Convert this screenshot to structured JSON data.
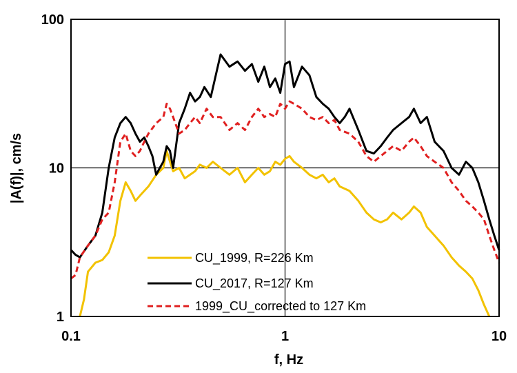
{
  "chart_data": {
    "type": "line",
    "title": "",
    "xlabel": "f, Hz",
    "ylabel": "|A(f)|, cm/s",
    "xscale": "log",
    "yscale": "log",
    "xlim": [
      0.1,
      10
    ],
    "ylim": [
      1,
      100
    ],
    "grid": "major lines at 1 Hz and 10 cm/s",
    "legend_position": "bottom-center",
    "x_ticks": [
      "0.1",
      "1",
      "10"
    ],
    "y_ticks": [
      "1",
      "10",
      "100"
    ],
    "series": [
      {
        "name": "CU_1999, R=226 Km",
        "color": "#f2c200",
        "style": "solid",
        "x": [
          0.11,
          0.115,
          0.12,
          0.13,
          0.14,
          0.15,
          0.16,
          0.17,
          0.18,
          0.19,
          0.2,
          0.21,
          0.22,
          0.23,
          0.25,
          0.27,
          0.28,
          0.29,
          0.3,
          0.32,
          0.34,
          0.36,
          0.38,
          0.4,
          0.43,
          0.46,
          0.5,
          0.55,
          0.6,
          0.65,
          0.7,
          0.75,
          0.8,
          0.85,
          0.9,
          0.95,
          1.0,
          1.05,
          1.1,
          1.2,
          1.3,
          1.4,
          1.5,
          1.6,
          1.7,
          1.8,
          2.0,
          2.2,
          2.4,
          2.6,
          2.8,
          3.0,
          3.2,
          3.5,
          3.8,
          4.0,
          4.3,
          4.6,
          5.0,
          5.5,
          6.0,
          6.5,
          7.0,
          7.5,
          8.0,
          8.5,
          9.0
        ],
        "y": [
          1.0,
          1.3,
          2.0,
          2.3,
          2.4,
          2.7,
          3.5,
          6.0,
          8.0,
          7.0,
          6.0,
          6.5,
          7.0,
          7.5,
          9.0,
          10.0,
          13.0,
          11.0,
          9.5,
          10.0,
          8.5,
          9.0,
          9.5,
          10.5,
          10.0,
          11.0,
          10.0,
          9.0,
          10.0,
          8.0,
          9.0,
          10.0,
          9.0,
          9.5,
          11.0,
          10.5,
          11.5,
          12.0,
          11.0,
          10.0,
          9.0,
          8.5,
          9.0,
          8.0,
          8.5,
          7.5,
          7.0,
          6.0,
          5.0,
          4.5,
          4.3,
          4.5,
          5.0,
          4.5,
          5.0,
          5.5,
          5.0,
          4.0,
          3.5,
          3.0,
          2.5,
          2.2,
          2.0,
          1.8,
          1.5,
          1.2,
          1.0
        ]
      },
      {
        "name": "CU_2017, R=127 Km",
        "color": "#000000",
        "style": "solid",
        "x": [
          0.1,
          0.105,
          0.11,
          0.12,
          0.13,
          0.14,
          0.15,
          0.16,
          0.17,
          0.18,
          0.19,
          0.2,
          0.21,
          0.22,
          0.23,
          0.24,
          0.25,
          0.26,
          0.27,
          0.28,
          0.29,
          0.3,
          0.32,
          0.34,
          0.36,
          0.38,
          0.4,
          0.42,
          0.45,
          0.48,
          0.5,
          0.55,
          0.6,
          0.65,
          0.7,
          0.75,
          0.8,
          0.85,
          0.9,
          0.95,
          1.0,
          1.05,
          1.1,
          1.2,
          1.3,
          1.4,
          1.5,
          1.6,
          1.7,
          1.8,
          1.9,
          2.0,
          2.2,
          2.4,
          2.6,
          2.8,
          3.0,
          3.2,
          3.5,
          3.8,
          4.0,
          4.3,
          4.6,
          5.0,
          5.5,
          6.0,
          6.5,
          7.0,
          7.5,
          8.0,
          8.5,
          9.0,
          9.5,
          10.0
        ],
        "y": [
          2.8,
          2.6,
          2.5,
          3.0,
          3.5,
          5.0,
          10.0,
          16.0,
          20.0,
          22.0,
          20.0,
          17.0,
          15.0,
          16.0,
          14.0,
          12.0,
          9.0,
          10.0,
          11.0,
          14.0,
          13.0,
          10.0,
          20.0,
          25.0,
          32.0,
          28.0,
          30.0,
          35.0,
          30.0,
          45.0,
          58.0,
          48.0,
          52.0,
          45.0,
          50.0,
          38.0,
          48.0,
          35.0,
          40.0,
          32.0,
          50.0,
          52.0,
          35.0,
          48.0,
          42.0,
          30.0,
          27.0,
          25.0,
          22.0,
          20.0,
          22.0,
          25.0,
          18.0,
          13.0,
          12.5,
          14.0,
          16.0,
          18.0,
          20.0,
          22.0,
          25.0,
          20.0,
          22.0,
          15.0,
          13.0,
          10.0,
          9.0,
          11.0,
          10.0,
          8.0,
          6.0,
          4.5,
          3.5,
          2.8
        ]
      },
      {
        "name": "1999_CU_corrected to 127 Km",
        "color": "#e02020",
        "style": "dashed",
        "x": [
          0.1,
          0.105,
          0.11,
          0.12,
          0.13,
          0.14,
          0.15,
          0.16,
          0.17,
          0.18,
          0.19,
          0.2,
          0.21,
          0.22,
          0.23,
          0.25,
          0.27,
          0.28,
          0.29,
          0.3,
          0.32,
          0.34,
          0.36,
          0.38,
          0.4,
          0.43,
          0.46,
          0.5,
          0.55,
          0.6,
          0.65,
          0.7,
          0.75,
          0.8,
          0.85,
          0.9,
          0.95,
          1.0,
          1.05,
          1.1,
          1.2,
          1.3,
          1.4,
          1.5,
          1.6,
          1.7,
          1.8,
          2.0,
          2.2,
          2.4,
          2.6,
          2.8,
          3.0,
          3.2,
          3.5,
          3.8,
          4.0,
          4.3,
          4.6,
          5.0,
          5.5,
          6.0,
          6.5,
          7.0,
          7.5,
          8.0,
          8.5,
          9.0,
          9.5,
          10.0
        ],
        "y": [
          1.8,
          1.9,
          2.5,
          3.0,
          3.5,
          4.5,
          5.0,
          8.0,
          15.0,
          17.0,
          13.0,
          12.0,
          13.0,
          15.0,
          17.0,
          20.0,
          22.0,
          27.0,
          25.0,
          22.0,
          17.0,
          18.0,
          20.0,
          22.0,
          20.0,
          25.0,
          22.0,
          22.0,
          18.0,
          20.0,
          18.0,
          22.0,
          25.0,
          22.0,
          23.0,
          22.0,
          27.0,
          25.0,
          28.0,
          27.0,
          25.0,
          22.0,
          21.0,
          22.0,
          20.0,
          21.0,
          18.0,
          17.0,
          15.0,
          12.0,
          11.0,
          12.0,
          13.0,
          14.0,
          13.0,
          15.0,
          16.0,
          14.0,
          12.0,
          11.0,
          10.0,
          8.0,
          7.0,
          6.0,
          5.5,
          5.0,
          4.5,
          3.5,
          2.8,
          2.3
        ]
      }
    ]
  }
}
